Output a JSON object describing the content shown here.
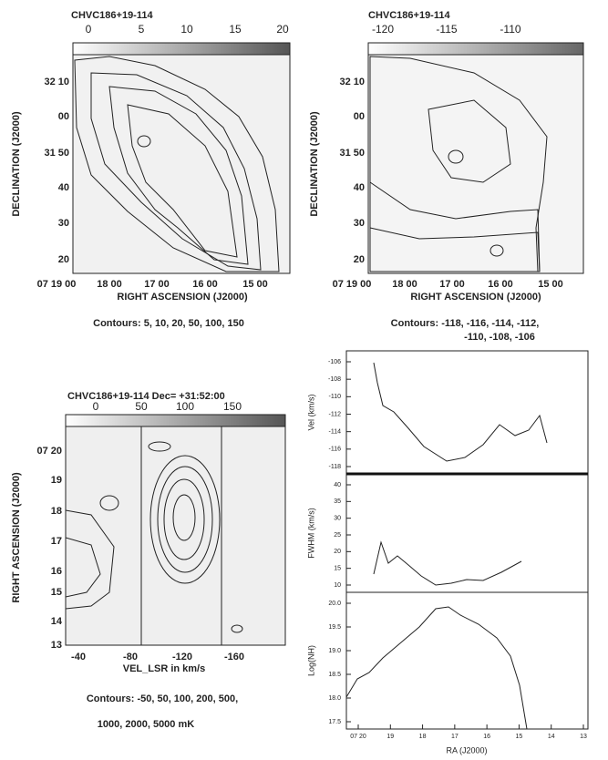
{
  "panels": [
    {
      "title": "CHVC186+19-114",
      "colorbar_ticks": [
        "0",
        "5",
        "10",
        "15",
        "20"
      ],
      "yticks": [
        "32 10",
        "00",
        "31 50",
        "40",
        "30",
        "20"
      ],
      "xticks": [
        "07 19 00",
        "18 00",
        "17 00",
        "16 00",
        "15 00"
      ],
      "xlabel": "RIGHT ASCENSION (J2000)",
      "ylabel": "DECLINATION (J2000)",
      "caption": [
        "Contours: 5, 10, 20, 50, 100, 150"
      ]
    },
    {
      "title": "CHVC186+19-114",
      "colorbar_ticks": [
        "-120",
        "-115",
        "-110"
      ],
      "yticks": [
        "32 10",
        "00",
        "31 50",
        "40",
        "30",
        "20"
      ],
      "xticks": [
        "07 19 00",
        "18 00",
        "17 00",
        "16 00",
        "15 00"
      ],
      "xlabel": "RIGHT ASCENSION (J2000)",
      "ylabel": "DECLINATION (J2000)",
      "caption": [
        "Contours: -118, -116, -114, -112,",
        "-110, -108, -106"
      ]
    },
    {
      "title": "CHVC186+19-114   Dec= +31:52:00",
      "colorbar_ticks": [
        "0",
        "50",
        "100",
        "150"
      ],
      "yticks": [
        "07 20",
        "19",
        "18",
        "17",
        "16",
        "15",
        "14",
        "13"
      ],
      "xticks": [
        "-40",
        "-80",
        "-120",
        "-160"
      ],
      "xlabel": "VEL_LSR in km/s",
      "ylabel": "RIGHT ASCENSION (J2000)",
      "caption": [
        "Contours: -50, 50, 100, 200, 500,",
        "1000, 2000, 5000 mK"
      ]
    }
  ],
  "profiles": {
    "ylabels": [
      "Vel (km/s)",
      "FWHM (km/s)",
      "Log(NH)"
    ],
    "yticks": [
      [
        "-106",
        "-108",
        "-110",
        "-112",
        "-114",
        "-116",
        "-118"
      ],
      [
        "40",
        "35",
        "30",
        "25",
        "20",
        "15",
        "10"
      ],
      [
        "20.0",
        "19.5",
        "19.0",
        "18.5",
        "18.0",
        "17.5"
      ]
    ],
    "xticks": [
      "07 20",
      "19",
      "18",
      "17",
      "16",
      "15",
      "14",
      "13"
    ],
    "xlabel": "RA (J2000)"
  }
}
